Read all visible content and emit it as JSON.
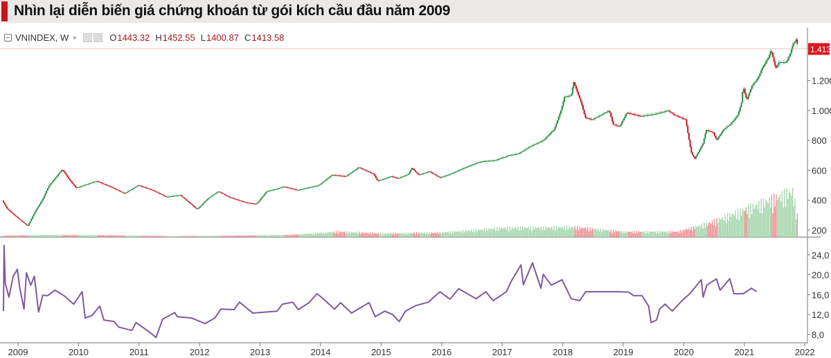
{
  "title": "Nhìn lại diễn biến giá chứng khoán từ gói kích cầu đầu năm 2009",
  "legend": {
    "symbol": "VNINDEX, W",
    "open_label": "O",
    "open": "1443.32",
    "high_label": "H",
    "high": "1452.55",
    "low_label": "L",
    "low": "1400.87",
    "close_label": "C",
    "close": "1413.58"
  },
  "colors": {
    "up": "#1e8a3c",
    "down": "#c0141c",
    "vol_up": "#9fd4a8",
    "vol_down": "#ee8b8b",
    "pe_line": "#7b5aa0",
    "title_stripe": "#c8141c",
    "last_price": "#e0161e"
  },
  "chart_data": [
    {
      "type": "candlestick",
      "name": "VNINDEX",
      "interval": "W",
      "x_unit": "year",
      "xlim": [
        2008.74,
        2022.0
      ],
      "ylim": [
        150,
        1520
      ],
      "y_ticks": [
        200,
        400,
        600,
        800,
        1000,
        1200
      ],
      "y_tick_labels": [
        "200",
        "400",
        "600",
        "800",
        "1.000",
        "1.200"
      ],
      "last_price_label": "1.413",
      "last_price": 1413,
      "close_points": [
        [
          2008.74,
          399
        ],
        [
          2008.82,
          343
        ],
        [
          2008.95,
          297
        ],
        [
          2009.16,
          228
        ],
        [
          2009.27,
          315
        ],
        [
          2009.41,
          408
        ],
        [
          2009.5,
          490
        ],
        [
          2009.73,
          606
        ],
        [
          2009.85,
          537
        ],
        [
          2009.96,
          482
        ],
        [
          2010.13,
          505
        ],
        [
          2010.3,
          528
        ],
        [
          2010.53,
          490
        ],
        [
          2010.76,
          445
        ],
        [
          2010.99,
          500
        ],
        [
          2011.22,
          468
        ],
        [
          2011.45,
          422
        ],
        [
          2011.68,
          435
        ],
        [
          2011.96,
          339
        ],
        [
          2012.14,
          412
        ],
        [
          2012.31,
          459
        ],
        [
          2012.48,
          422
        ],
        [
          2012.76,
          385
        ],
        [
          2012.94,
          375
        ],
        [
          2013.11,
          459
        ],
        [
          2013.28,
          477
        ],
        [
          2013.39,
          491
        ],
        [
          2013.62,
          468
        ],
        [
          2013.97,
          500
        ],
        [
          2014.19,
          569
        ],
        [
          2014.42,
          560
        ],
        [
          2014.63,
          620
        ],
        [
          2014.88,
          574
        ],
        [
          2014.94,
          528
        ],
        [
          2015.17,
          560
        ],
        [
          2015.28,
          546
        ],
        [
          2015.45,
          574
        ],
        [
          2015.51,
          615
        ],
        [
          2015.62,
          569
        ],
        [
          2015.8,
          592
        ],
        [
          2015.97,
          551
        ],
        [
          2016.14,
          574
        ],
        [
          2016.37,
          615
        ],
        [
          2016.6,
          652
        ],
        [
          2016.71,
          662
        ],
        [
          2016.88,
          666
        ],
        [
          2017.11,
          699
        ],
        [
          2017.28,
          713
        ],
        [
          2017.46,
          759
        ],
        [
          2017.68,
          800
        ],
        [
          2017.86,
          874
        ],
        [
          2017.97,
          999
        ],
        [
          2018.03,
          1091
        ],
        [
          2018.14,
          1100
        ],
        [
          2018.18,
          1191
        ],
        [
          2018.31,
          1045
        ],
        [
          2018.37,
          953
        ],
        [
          2018.49,
          939
        ],
        [
          2018.66,
          976
        ],
        [
          2018.77,
          999
        ],
        [
          2018.83,
          907
        ],
        [
          2018.94,
          893
        ],
        [
          2019.06,
          985
        ],
        [
          2019.29,
          962
        ],
        [
          2019.52,
          976
        ],
        [
          2019.74,
          999
        ],
        [
          2019.86,
          967
        ],
        [
          2020.03,
          939
        ],
        [
          2020.12,
          722
        ],
        [
          2020.18,
          676
        ],
        [
          2020.32,
          782
        ],
        [
          2020.37,
          870
        ],
        [
          2020.49,
          851
        ],
        [
          2020.54,
          800
        ],
        [
          2020.66,
          874
        ],
        [
          2020.77,
          907
        ],
        [
          2020.89,
          967
        ],
        [
          2020.95,
          1045
        ],
        [
          2020.98,
          1160
        ],
        [
          2021.04,
          1068
        ],
        [
          2021.12,
          1160
        ],
        [
          2021.23,
          1219
        ],
        [
          2021.29,
          1279
        ],
        [
          2021.4,
          1354
        ],
        [
          2021.44,
          1405
        ],
        [
          2021.52,
          1279
        ],
        [
          2021.57,
          1322
        ],
        [
          2021.69,
          1322
        ],
        [
          2021.75,
          1369
        ],
        [
          2021.8,
          1438
        ],
        [
          2021.86,
          1477
        ],
        [
          2021.89,
          1413
        ]
      ],
      "volume_relative": [
        [
          2008.74,
          0.03
        ],
        [
          2009.5,
          0.05
        ],
        [
          2010.5,
          0.04
        ],
        [
          2011.5,
          0.02
        ],
        [
          2012.5,
          0.03
        ],
        [
          2013.5,
          0.05
        ],
        [
          2014.3,
          0.12
        ],
        [
          2015.0,
          0.08
        ],
        [
          2016.0,
          0.1
        ],
        [
          2017.0,
          0.2
        ],
        [
          2018.2,
          0.22
        ],
        [
          2019.0,
          0.12
        ],
        [
          2019.9,
          0.12
        ],
        [
          2020.4,
          0.3
        ],
        [
          2020.9,
          0.55
        ],
        [
          2021.3,
          0.75
        ],
        [
          2021.8,
          1.0
        ],
        [
          2021.89,
          0.35
        ]
      ]
    },
    {
      "type": "line",
      "x_unit": "year",
      "xlim": [
        2008.74,
        2022.0
      ],
      "ylim": [
        6,
        27
      ],
      "y_ticks": [
        8,
        12,
        16,
        20,
        24
      ],
      "y_tick_labels": [
        "8,0",
        "12,0",
        "16,0",
        "20,0",
        "24,0"
      ],
      "x_ticks": [
        2009,
        2010,
        2011,
        2012,
        2013,
        2014,
        2015,
        2016,
        2017,
        2018,
        2019,
        2020,
        2021,
        2022
      ],
      "x_tick_labels": [
        "2009",
        "2010",
        "2011",
        "2012",
        "2013",
        "2014",
        "2015",
        "2016",
        "2017",
        "2018",
        "2019",
        "2020",
        "2021",
        "2022"
      ],
      "points": [
        [
          2008.76,
          12.7
        ],
        [
          2008.77,
          25.9
        ],
        [
          2008.79,
          18.3
        ],
        [
          2008.85,
          15.5
        ],
        [
          2008.92,
          19.7
        ],
        [
          2008.99,
          21.1
        ],
        [
          2009.03,
          17.3
        ],
        [
          2009.1,
          13.1
        ],
        [
          2009.14,
          20.4
        ],
        [
          2009.21,
          17.9
        ],
        [
          2009.27,
          19.7
        ],
        [
          2009.34,
          12.5
        ],
        [
          2009.41,
          15.9
        ],
        [
          2009.49,
          15.8
        ],
        [
          2009.61,
          16.9
        ],
        [
          2009.76,
          15.8
        ],
        [
          2009.92,
          14.1
        ],
        [
          2010.06,
          16.6
        ],
        [
          2010.11,
          11.3
        ],
        [
          2010.22,
          11.8
        ],
        [
          2010.35,
          13.7
        ],
        [
          2010.42,
          10.9
        ],
        [
          2010.59,
          10.6
        ],
        [
          2010.66,
          9.5
        ],
        [
          2010.88,
          8.8
        ],
        [
          2010.95,
          10.4
        ],
        [
          2011.16,
          8.6
        ],
        [
          2011.28,
          7.4
        ],
        [
          2011.39,
          11.1
        ],
        [
          2011.59,
          12.4
        ],
        [
          2011.63,
          11.6
        ],
        [
          2011.87,
          11.3
        ],
        [
          2012.09,
          10.2
        ],
        [
          2012.25,
          11.3
        ],
        [
          2012.35,
          13.1
        ],
        [
          2012.57,
          13.0
        ],
        [
          2012.66,
          14.5
        ],
        [
          2012.88,
          12.3
        ],
        [
          2013.28,
          12.7
        ],
        [
          2013.37,
          14.1
        ],
        [
          2013.54,
          14.5
        ],
        [
          2013.63,
          13.0
        ],
        [
          2013.81,
          14.4
        ],
        [
          2013.94,
          16.2
        ],
        [
          2014.05,
          15.1
        ],
        [
          2014.23,
          13.1
        ],
        [
          2014.33,
          14.4
        ],
        [
          2014.51,
          12.3
        ],
        [
          2014.8,
          14.4
        ],
        [
          2014.9,
          11.6
        ],
        [
          2015.06,
          12.7
        ],
        [
          2015.19,
          12.0
        ],
        [
          2015.3,
          10.6
        ],
        [
          2015.4,
          12.7
        ],
        [
          2015.57,
          13.8
        ],
        [
          2015.78,
          14.5
        ],
        [
          2015.97,
          16.6
        ],
        [
          2016.14,
          15.1
        ],
        [
          2016.28,
          17.2
        ],
        [
          2016.57,
          15.2
        ],
        [
          2016.73,
          16.6
        ],
        [
          2016.85,
          14.8
        ],
        [
          2017.07,
          16.6
        ],
        [
          2017.15,
          18.7
        ],
        [
          2017.31,
          22.0
        ],
        [
          2017.35,
          18.0
        ],
        [
          2017.5,
          22.4
        ],
        [
          2017.64,
          17.3
        ],
        [
          2017.68,
          20.1
        ],
        [
          2017.81,
          17.9
        ],
        [
          2017.99,
          19.0
        ],
        [
          2018.14,
          15.2
        ],
        [
          2018.28,
          14.8
        ],
        [
          2018.38,
          16.6
        ],
        [
          2018.65,
          16.6
        ],
        [
          2018.91,
          16.6
        ],
        [
          2019.09,
          16.5
        ],
        [
          2019.17,
          15.8
        ],
        [
          2019.31,
          15.8
        ],
        [
          2019.42,
          13.7
        ],
        [
          2019.46,
          10.4
        ],
        [
          2019.55,
          10.9
        ],
        [
          2019.6,
          13.1
        ],
        [
          2019.69,
          14.1
        ],
        [
          2019.81,
          12.7
        ],
        [
          2019.97,
          14.8
        ],
        [
          2020.1,
          16.2
        ],
        [
          2020.29,
          19.0
        ],
        [
          2020.32,
          15.5
        ],
        [
          2020.38,
          17.9
        ],
        [
          2020.54,
          19.2
        ],
        [
          2020.6,
          16.9
        ],
        [
          2020.76,
          19.2
        ],
        [
          2020.83,
          16.2
        ],
        [
          2020.98,
          16.2
        ],
        [
          2021.12,
          17.3
        ],
        [
          2021.2,
          16.6
        ]
      ]
    }
  ]
}
